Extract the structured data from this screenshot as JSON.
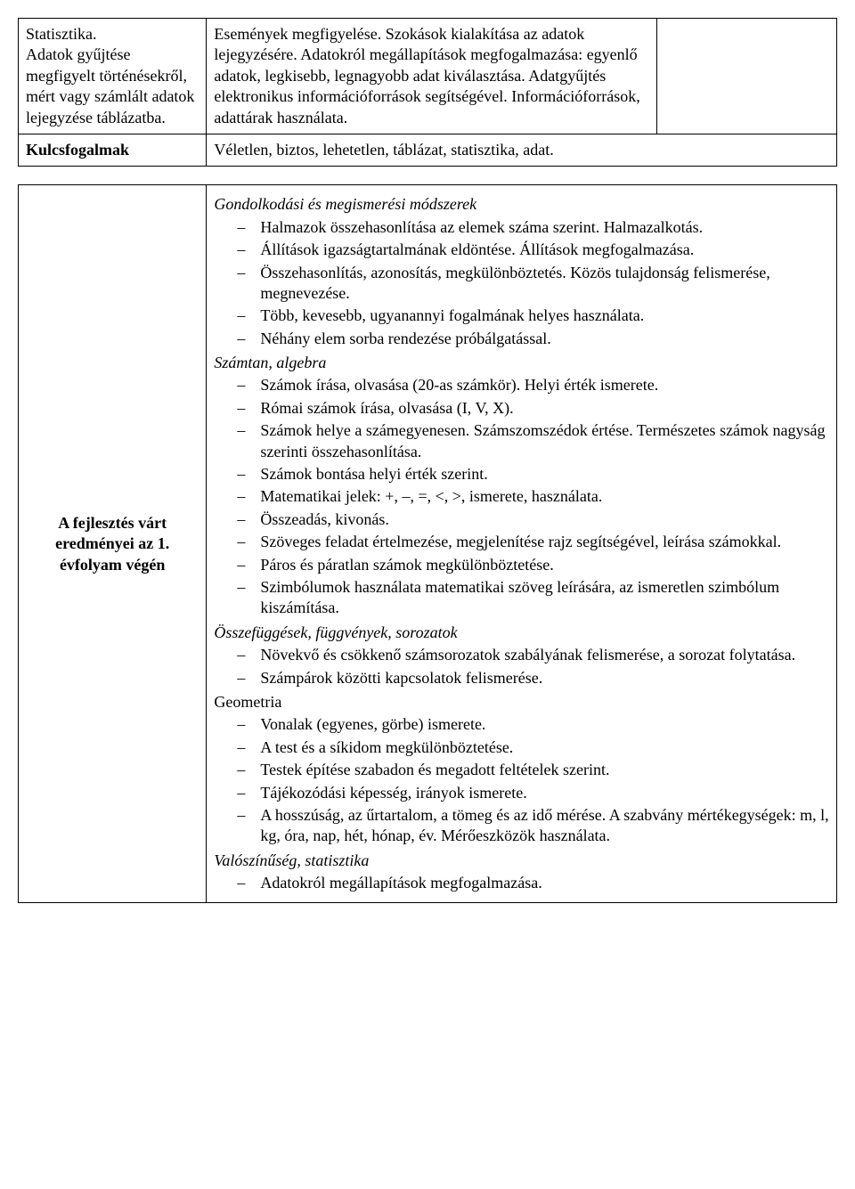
{
  "table1": {
    "row1": {
      "left": "Statisztika.\nAdatok gyűjtése megfigyelt történésekről, mért vagy számlált adatok lejegyzése táblázatba.",
      "mid": "Események megfigyelése. Szokások kialakítása az adatok lejegyzésére. Adatokról megállapítások megfogalmazása: egyenlő adatok, legkisebb, legnagyobb adat kiválasztása. Adatgyűjtés elektronikus információforrások segítségével. Információforrások, adattárak használata.",
      "right": ""
    },
    "row2": {
      "label": "Kulcsfogalmak",
      "value": "Véletlen, biztos, lehetetlen, táblázat, statisztika, adat."
    }
  },
  "table2": {
    "left": "A fejlesztés várt eredményei az 1. évfolyam végén",
    "sections": {
      "s1": {
        "title": "Gondolkodási és megismerési módszerek",
        "items": [
          "Halmazok összehasonlítása az elemek száma szerint. Halmazalkotás.",
          "Állítások igazságtartalmának eldöntése. Állítások megfogalmazása.",
          "Összehasonlítás, azonosítás, megkülönböztetés. Közös tulajdonság felismerése, megnevezése.",
          "Több, kevesebb, ugyanannyi fogalmának helyes használata.",
          "Néhány elem sorba rendezése próbálgatással."
        ]
      },
      "s2": {
        "title": "Számtan, algebra",
        "items": [
          "Számok írása, olvasása (20-as számkör). Helyi érték ismerete.",
          "Római számok írása, olvasása (I, V, X).",
          "Számok helye a számegyenesen. Számszomszédok értése. Természetes számok nagyság szerinti összehasonlítása.",
          "Számok  bontása helyi érték szerint.",
          "Matematikai jelek: +, –,  =, <, >,  ismerete, használata.",
          "Összeadás, kivonás.",
          "Szöveges feladat értelmezése, megjelenítése rajz segítségével, leírása számokkal.",
          "Páros és páratlan számok megkülönböztetése.",
          "Szimbólumok használata matematikai szöveg leírására, az ismeretlen szimbólum kiszámítása."
        ]
      },
      "s3": {
        "title": "Összefüggések, függvények, sorozatok",
        "items": [
          "Növekvő és csökkenő számsorozatok szabályának felismerése, a sorozat folytatása.",
          "Számpárok közötti kapcsolatok felismerése."
        ]
      },
      "s4": {
        "title": "Geometria",
        "items": [
          "Vonalak (egyenes, görbe) ismerete.",
          "A test és a síkidom megkülönböztetése.",
          "Testek építése szabadon és megadott feltételek szerint.",
          "Tájékozódási képesség, irányok ismerete.",
          "A hosszúság, az űrtartalom, a tömeg és az idő mérése. A szabvány mértékegységek:  m, l,  kg, óra, nap, hét, hónap, év.  Mérőeszközök használata."
        ]
      },
      "s5": {
        "title": "Valószínűség, statisztika",
        "items": [
          "Adatokról megállapítások megfogalmazása."
        ]
      }
    }
  }
}
